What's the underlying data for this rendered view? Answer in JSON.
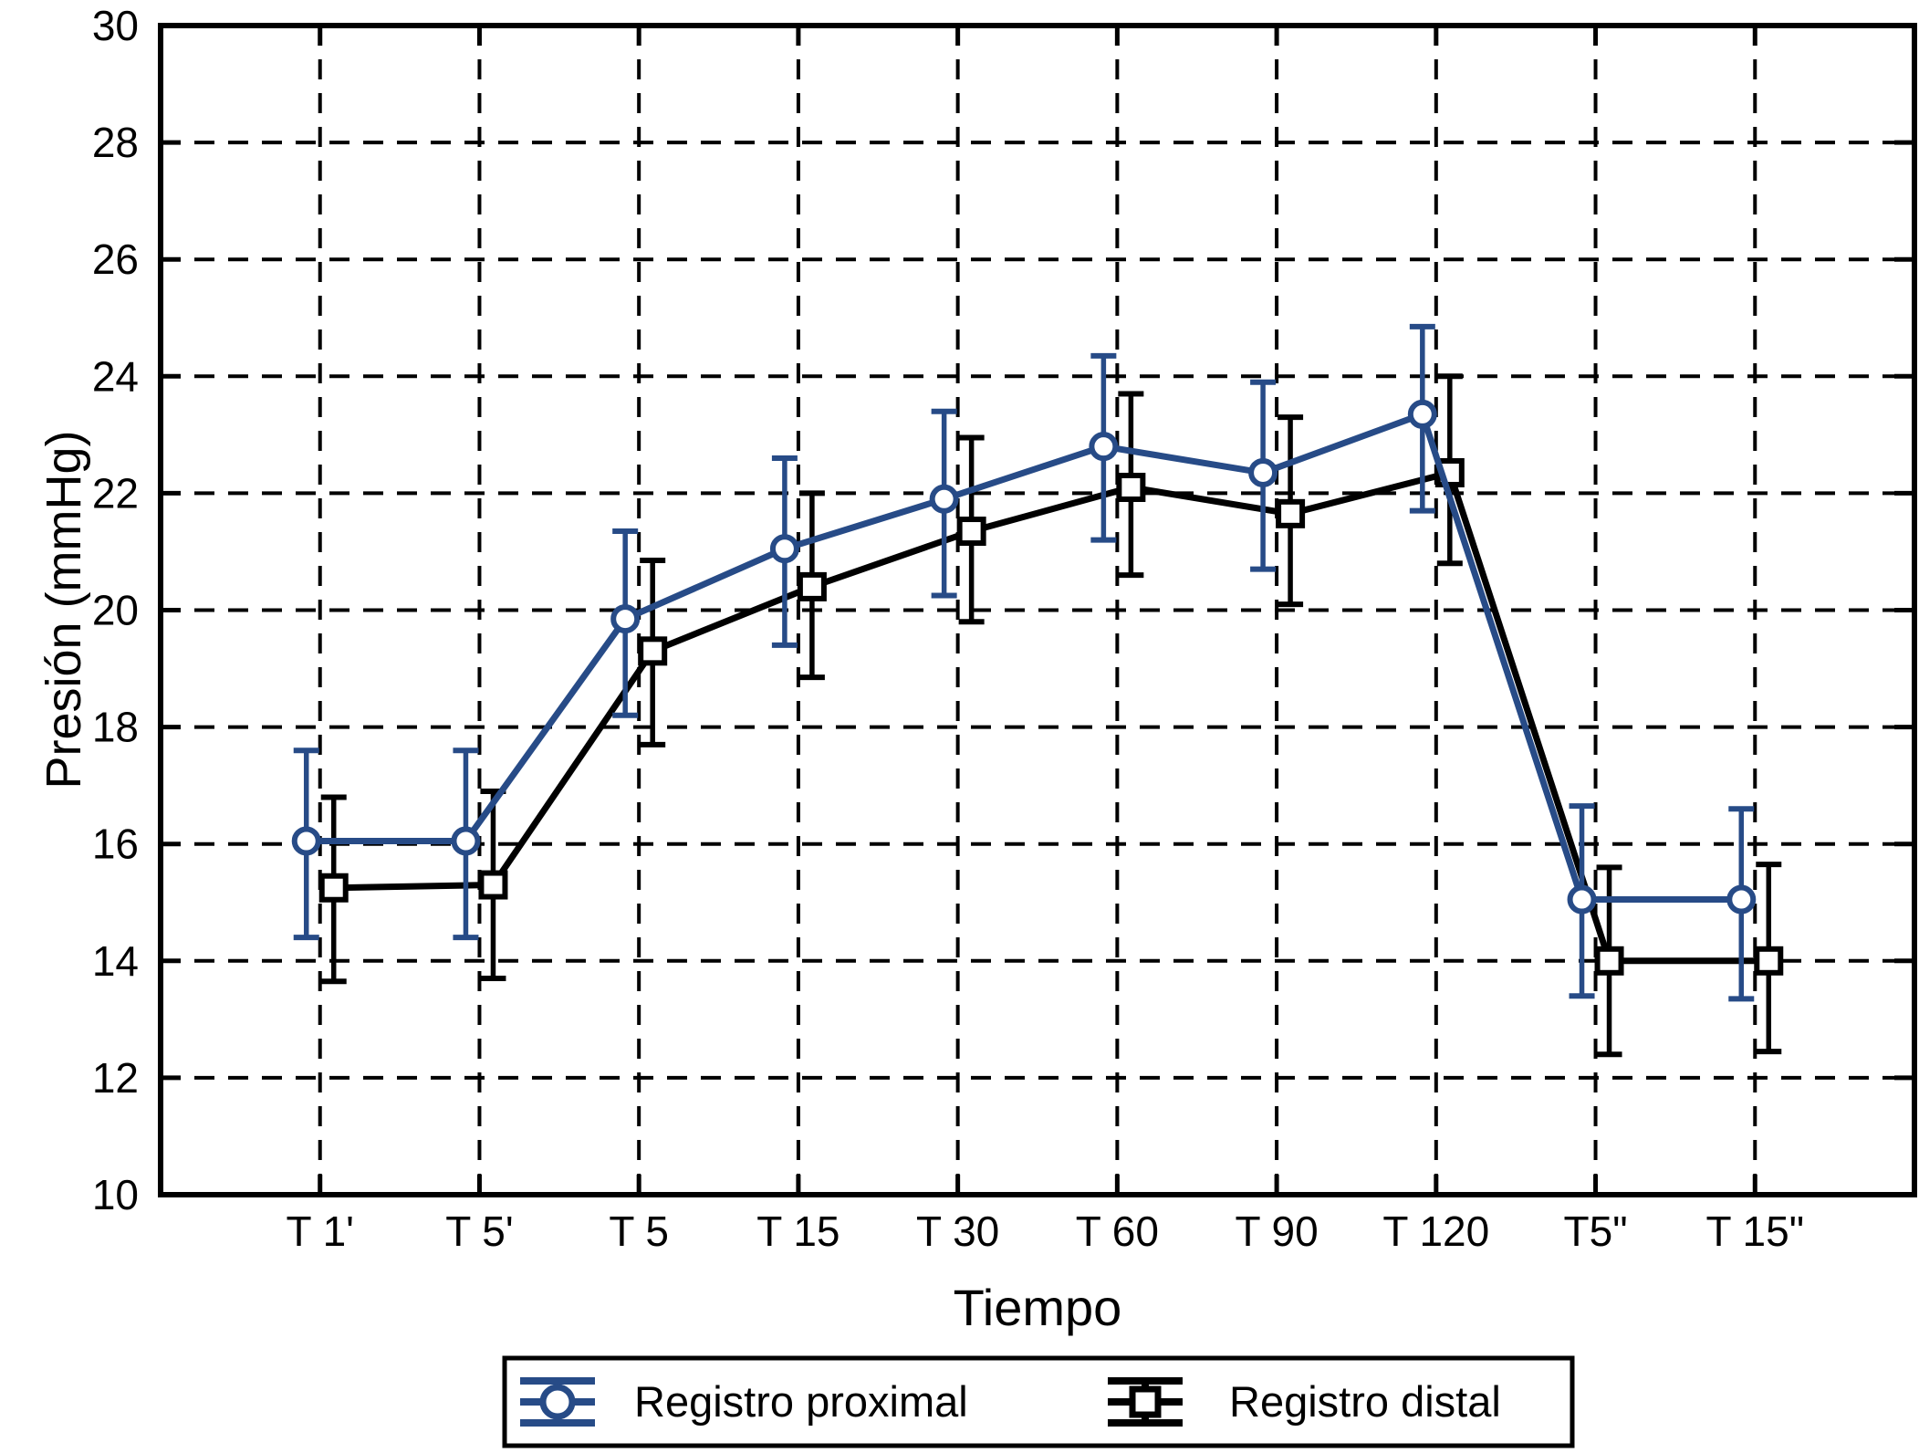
{
  "figure": {
    "background": "#ffffff",
    "frame_color": "#000000",
    "grid_color": "#000000"
  },
  "chart_data": {
    "type": "line",
    "title": "",
    "xlabel": "Tiempo",
    "ylabel": "Presión (mmHg)",
    "categories": [
      "T 1'",
      "T 5'",
      "T 5",
      "T 15",
      "T 30",
      "T 60",
      "T 90",
      "T 120",
      "T5\"",
      "T 15\""
    ],
    "y_axis": {
      "min": 10,
      "max": 30,
      "tick_step": 2,
      "ticks": [
        10,
        12,
        14,
        16,
        18,
        20,
        22,
        24,
        26,
        28,
        30
      ]
    },
    "grid": {
      "horizontal": true,
      "vertical": true,
      "style": "dashed"
    },
    "legend": {
      "position": "bottom",
      "border": true
    },
    "series": [
      {
        "name": "Registro proximal",
        "marker": "circle",
        "color": "#274b87",
        "values": [
          16.05,
          16.05,
          19.85,
          21.05,
          21.9,
          22.8,
          22.35,
          23.35,
          15.05,
          15.05
        ],
        "err_upper": [
          17.6,
          17.6,
          21.35,
          22.6,
          23.4,
          24.35,
          23.9,
          24.85,
          16.65,
          16.6
        ],
        "err_lower": [
          14.4,
          14.4,
          18.2,
          19.4,
          20.25,
          21.2,
          20.7,
          21.7,
          13.4,
          13.35
        ]
      },
      {
        "name": "Registro distal",
        "marker": "square",
        "color": "#000000",
        "values": [
          15.25,
          15.3,
          19.3,
          20.4,
          21.35,
          22.1,
          21.65,
          22.35,
          14.0,
          14.0
        ],
        "err_upper": [
          16.8,
          16.9,
          20.85,
          22.0,
          22.95,
          23.7,
          23.3,
          24.0,
          15.6,
          15.65
        ],
        "err_lower": [
          13.65,
          13.7,
          17.7,
          18.85,
          19.8,
          20.6,
          20.1,
          20.8,
          12.4,
          12.45
        ]
      }
    ]
  }
}
